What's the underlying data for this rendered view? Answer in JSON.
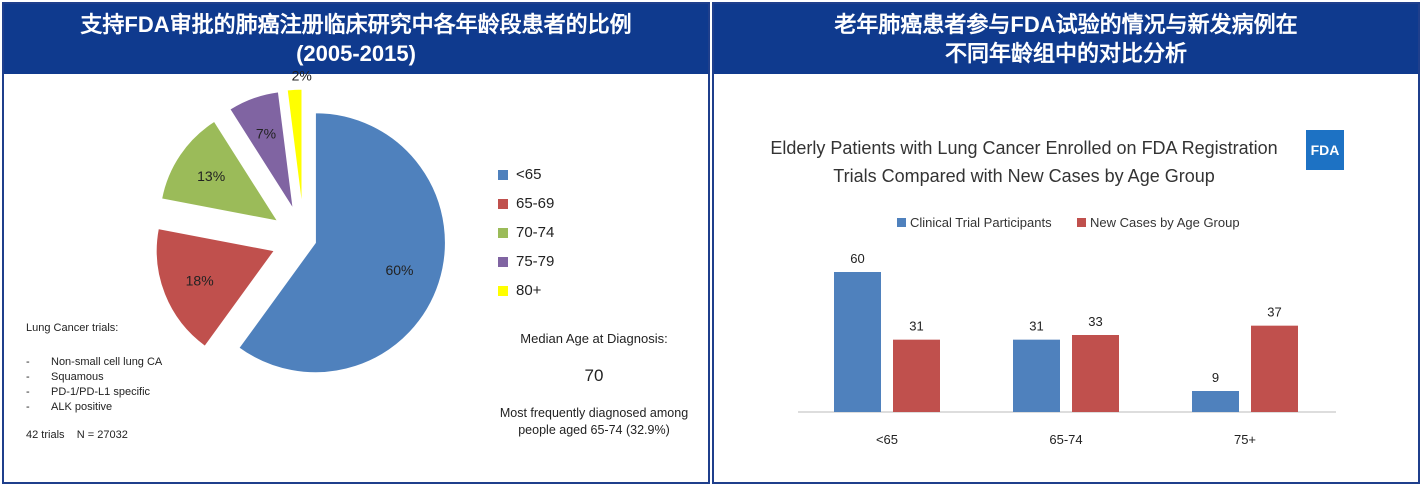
{
  "left": {
    "title": "支持FDA审批的肺癌注册临床研究中各年龄段患者的比例\n(2005-2015)",
    "notes": {
      "heading": "Lung Cancer trials:",
      "items": [
        "Non-small cell lung CA",
        "Squamous",
        "PD-1/PD-L1 specific",
        "ALK positive"
      ],
      "bullet": "-",
      "footer": "42 trials    N = 27032"
    },
    "median": {
      "label": "Median Age at Diagnosis:",
      "value": "70",
      "desc1": "Most frequently diagnosed among",
      "desc2": "people aged 65-74 (32.9%)"
    }
  },
  "right": {
    "title": "老年肺癌患者参与FDA试验的情况与新发病例在\n不同年龄组中的对比分析",
    "logo": "FDA"
  },
  "chart_data": [
    {
      "type": "pie",
      "categories": [
        "<65",
        "65-69",
        "70-74",
        "75-79",
        "80+"
      ],
      "values": [
        60,
        18,
        13,
        7,
        2
      ],
      "labels": [
        "60%",
        "18%",
        "13%",
        "7%",
        "2%"
      ],
      "colors": [
        "#4f81bd",
        "#c0504d",
        "#9bbb59",
        "#8064a2",
        "#ffff00"
      ],
      "legend": "right",
      "exploded": true
    },
    {
      "type": "bar",
      "title1": "Elderly Patients with Lung Cancer Enrolled on FDA Registration",
      "title2": "Trials Compared with New Cases by Age Group",
      "categories": [
        "<65",
        "65-74",
        "75+"
      ],
      "series": [
        {
          "name": "Clinical Trial Participants",
          "values": [
            60,
            31,
            9
          ],
          "color": "#4f81bd"
        },
        {
          "name": "New Cases by Age Group",
          "values": [
            31,
            33,
            37
          ],
          "color": "#c0504d"
        }
      ],
      "ylim": [
        0,
        60
      ],
      "legend": "top",
      "grid": false
    }
  ]
}
